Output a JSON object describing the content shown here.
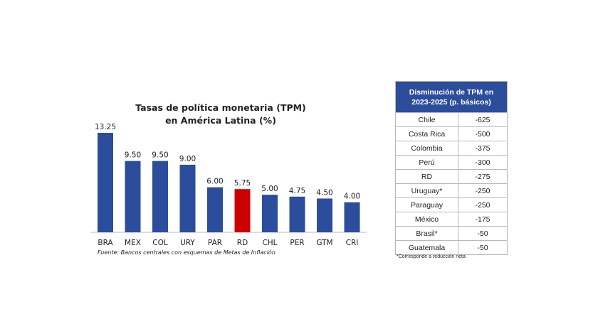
{
  "chart_data": {
    "type": "bar",
    "title": "Tasas de política monetaria (TPM) en América Latina (%)",
    "title_lines": [
      "Tasas de política monetaria (TPM)",
      "en América Latina (%)"
    ],
    "categories": [
      "BRA",
      "MEX",
      "COL",
      "URY",
      "PAR",
      "RD",
      "CHL",
      "PER",
      "GTM",
      "CRI"
    ],
    "values": [
      13.25,
      9.5,
      9.5,
      9.0,
      6.0,
      5.75,
      5.0,
      4.75,
      4.5,
      4.0
    ],
    "value_labels": [
      "13.25",
      "9.50",
      "9.50",
      "9.00",
      "6.00",
      "5.75",
      "5.00",
      "4.75",
      "4.50",
      "4.00"
    ],
    "highlight": "RD",
    "colors": {
      "default": "#2c4c9c",
      "highlight": "#cc0000"
    },
    "xlabel": "",
    "ylabel": "",
    "ylim": [
      0,
      13.25
    ],
    "source": "Fuente: Bancos centrales con esquemas de Metas de Inflación"
  },
  "table": {
    "header": [
      "Disminución de TPM en",
      "2023-2025 (p. básicos)"
    ],
    "rows": [
      [
        "Chile",
        "-625"
      ],
      [
        "Costa Rica",
        "-500"
      ],
      [
        "Colombia",
        "-375"
      ],
      [
        "Perú",
        "-300"
      ],
      [
        "RD",
        "-275"
      ],
      [
        "Uruguay*",
        "-250"
      ],
      [
        "Paraguay",
        "-250"
      ],
      [
        "México",
        "-175"
      ],
      [
        "Brasil*",
        "-50"
      ],
      [
        "Guatemala",
        "-50"
      ]
    ],
    "footnote": "*Corresponde a reducción neta"
  }
}
